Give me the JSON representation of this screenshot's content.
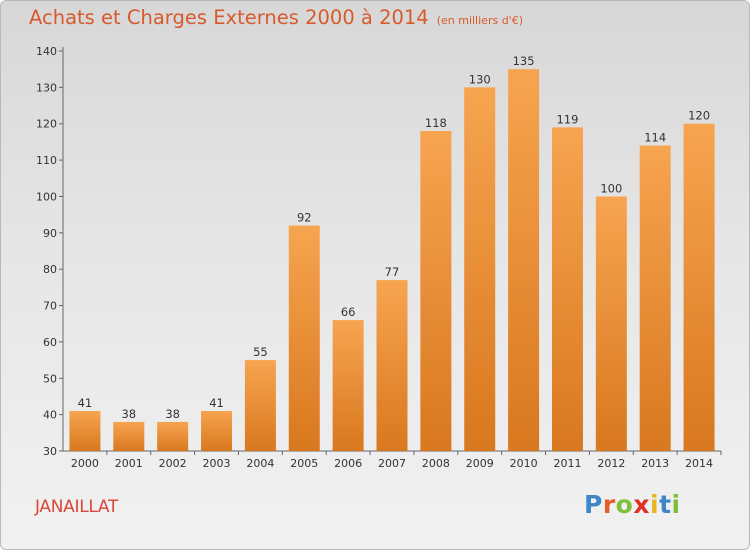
{
  "header": {
    "title": "Achats et Charges Externes 2000 à 2014",
    "unit": "(en milliers d'€)"
  },
  "location": "JANAILLAT",
  "logo": {
    "text": "Proxiti",
    "letters": [
      {
        "ch": "P",
        "color": "#3f86c8"
      },
      {
        "ch": "r",
        "color": "#e55b2a"
      },
      {
        "ch": "o",
        "color": "#7fbf3a"
      },
      {
        "ch": "x",
        "color": "#e12f26"
      },
      {
        "ch": "i",
        "color": "#e8b422"
      },
      {
        "ch": "t",
        "color": "#3f86c8"
      },
      {
        "ch": "i",
        "color": "#7fbf3a"
      }
    ]
  },
  "chart_data": {
    "type": "bar",
    "title": "Achats et Charges Externes 2000 à 2014",
    "subtitle": "(en milliers d'€)",
    "xlabel": "",
    "ylabel": "",
    "categories": [
      "2000",
      "2001",
      "2002",
      "2003",
      "2004",
      "2005",
      "2006",
      "2007",
      "2008",
      "2009",
      "2010",
      "2011",
      "2012",
      "2013",
      "2014"
    ],
    "values": [
      41,
      38,
      38,
      41,
      55,
      92,
      66,
      77,
      118,
      130,
      135,
      119,
      100,
      114,
      120
    ],
    "ylim": [
      30,
      140
    ],
    "yticks": [
      30,
      40,
      50,
      60,
      70,
      80,
      90,
      100,
      110,
      120,
      130,
      140
    ],
    "grid": false,
    "bar_color_top": "#f7a450",
    "bar_color_bottom": "#d8781f"
  }
}
